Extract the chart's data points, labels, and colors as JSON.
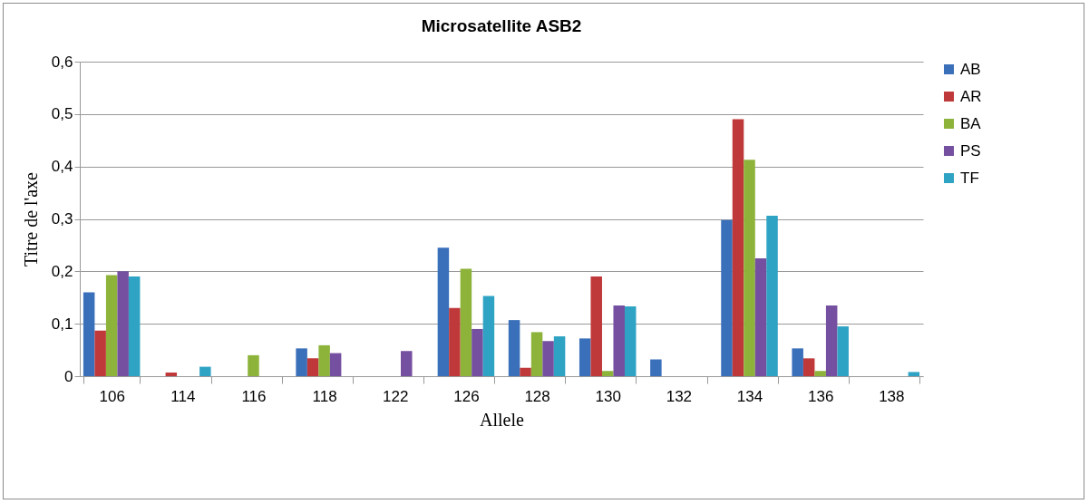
{
  "chart_data": {
    "type": "bar",
    "title": "Microsatellite ASB2",
    "xlabel": "Allele",
    "ylabel": "Titre de l'axe",
    "categories": [
      "106",
      "114",
      "116",
      "118",
      "122",
      "126",
      "128",
      "130",
      "132",
      "134",
      "136",
      "138"
    ],
    "series": [
      {
        "name": "AB",
        "color": "#3a6fba",
        "values": [
          0.16,
          null,
          null,
          0.053,
          null,
          0.245,
          0.107,
          0.072,
          0.032,
          0.298,
          0.053,
          null
        ]
      },
      {
        "name": "AR",
        "color": "#c0393a",
        "values": [
          0.087,
          0.007,
          null,
          0.034,
          null,
          0.13,
          0.016,
          0.19,
          null,
          0.49,
          0.034,
          null
        ]
      },
      {
        "name": "BA",
        "color": "#8db33a",
        "values": [
          0.193,
          null,
          0.04,
          0.059,
          null,
          0.205,
          0.084,
          0.01,
          null,
          0.413,
          0.01,
          null
        ]
      },
      {
        "name": "PS",
        "color": "#7550a0",
        "values": [
          0.2,
          null,
          null,
          0.044,
          0.048,
          0.09,
          0.067,
          0.135,
          null,
          0.225,
          0.135,
          null
        ]
      },
      {
        "name": "TF",
        "color": "#2fa3c4",
        "values": [
          0.19,
          0.018,
          null,
          null,
          null,
          0.153,
          0.076,
          0.133,
          null,
          0.306,
          0.095,
          0.008
        ]
      }
    ],
    "ylim": [
      0,
      0.6
    ],
    "yticks": [
      {
        "value": 0,
        "label": "0"
      },
      {
        "value": 0.1,
        "label": "0,1"
      },
      {
        "value": 0.2,
        "label": "0,2"
      },
      {
        "value": 0.3,
        "label": "0,3"
      },
      {
        "value": 0.4,
        "label": "0,4"
      },
      {
        "value": 0.5,
        "label": "0,5"
      },
      {
        "value": 0.6,
        "label": "0,6"
      }
    ],
    "grid": "y",
    "legend": "right"
  }
}
